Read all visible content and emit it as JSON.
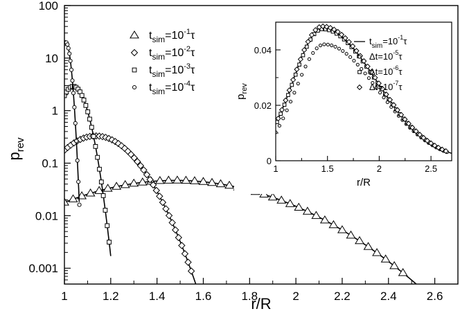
{
  "chart_data": [
    {
      "type": "scatter",
      "xlabel": "r/R",
      "ylabel": "p",
      "ylabel_sub": "rev",
      "yscale": "log",
      "xlim": [
        1.0,
        2.7
      ],
      "ylim": [
        0.0005,
        100
      ],
      "x_ticks": [
        "1",
        "1.2",
        "1.4",
        "1.6",
        "1.8",
        "2",
        "2.2",
        "2.4",
        "2.6"
      ],
      "y_ticks": [
        "0.001",
        "0.01",
        "0.1",
        "1",
        "10",
        "100"
      ],
      "legend_position": "top-center",
      "series": [
        {
          "name": "t_sim=10^-1 τ",
          "label": {
            "base": "t",
            "sub": "sim",
            "mid": "=10",
            "sup": "-1",
            "end": "τ"
          },
          "marker": "triangle",
          "peak": 0.047,
          "mu": 1.48,
          "sigma": 0.345,
          "x_range": [
            1.0,
            2.62
          ]
        },
        {
          "name": "t_sim=10^-2 τ",
          "label": {
            "base": "t",
            "sub": "sim",
            "mid": "=10",
            "sup": "-2",
            "end": "τ"
          },
          "marker": "diamond",
          "peak": 0.33,
          "mu": 1.135,
          "sigma": 0.12,
          "x_range": [
            1.0,
            1.59
          ]
        },
        {
          "name": "t_sim=10^-3 τ",
          "label": {
            "base": "t",
            "sub": "sim",
            "mid": "=10",
            "sup": "-3",
            "end": "τ"
          },
          "marker": "square",
          "peak": 2.9,
          "mu": 1.038,
          "sigma": 0.042,
          "x_range": [
            1.0,
            1.2
          ]
        },
        {
          "name": "t_sim=10^-4 τ",
          "label": {
            "base": "t",
            "sub": "sim",
            "mid": "=10",
            "sup": "-4",
            "end": "τ"
          },
          "marker": "circle",
          "peak": 20.0,
          "mu": 1.006,
          "sigma": 0.0155,
          "x_range": [
            1.0,
            1.065
          ]
        }
      ]
    },
    {
      "type": "scatter",
      "inset": true,
      "xlabel": "r/R",
      "ylabel": "p",
      "ylabel_sub": "rev",
      "yscale": "linear",
      "xlim": [
        1.0,
        2.7
      ],
      "ylim": [
        0,
        0.05
      ],
      "x_ticks": [
        "1",
        "1.5",
        "2",
        "2.5"
      ],
      "y_ticks": [
        "0",
        "0.02",
        "0.04"
      ],
      "legend_position": "top-right",
      "series": [
        {
          "name": "t_sim=10^-1 τ",
          "label": {
            "base": "t",
            "sub": "sim",
            "mid": "=10",
            "sup": "-1",
            "end": "τ"
          },
          "marker": "line",
          "peak": 0.048,
          "mu": 1.45
        },
        {
          "name": "Δt=10^-5 τ",
          "label": {
            "base": "Δt",
            "sub": "",
            "mid": "=10",
            "sup": "-5",
            "end": "τ"
          },
          "marker": "circle",
          "peak": 0.042,
          "mu": 1.47
        },
        {
          "name": "Δt=10^-6 τ",
          "label": {
            "base": "Δt",
            "sub": "",
            "mid": "=10",
            "sup": "-6",
            "end": "τ"
          },
          "marker": "square",
          "peak": 0.0475,
          "mu": 1.45
        },
        {
          "name": "Δt=10^-7 τ",
          "label": {
            "base": "Δt",
            "sub": "",
            "mid": "=10",
            "sup": "-7",
            "end": "τ"
          },
          "marker": "diamond",
          "peak": 0.0485,
          "mu": 1.45
        }
      ]
    }
  ]
}
